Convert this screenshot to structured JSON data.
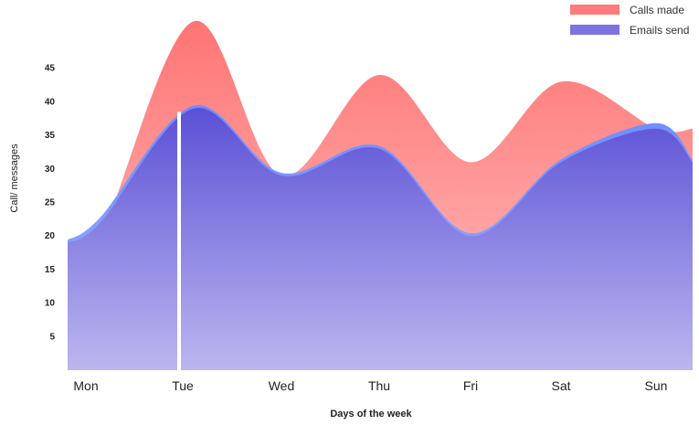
{
  "chart_data": {
    "type": "area",
    "title": "",
    "xlabel": "Days of the week",
    "ylabel": "Call/ messages",
    "categories": [
      "Mon",
      "Tue",
      "Wed",
      "Thu",
      "Fri",
      "Sat",
      "Sun"
    ],
    "y_ticks": [
      5,
      10,
      15,
      20,
      25,
      30,
      35,
      40,
      45
    ],
    "ylim": [
      0,
      50
    ],
    "grid": false,
    "legend_position": "top-right",
    "series": [
      {
        "name": "Calls made",
        "color": "#ff7a7a",
        "values": [
          18,
          52,
          29,
          44,
          31,
          43,
          36
        ],
        "sub_points": [
          {
            "x": "Mon",
            "y": 18
          },
          {
            "x": "Mon",
            "y": 20
          },
          {
            "x": "Tue",
            "y": 52
          },
          {
            "x": "Wed",
            "y": 29
          },
          {
            "x": "Thu",
            "y": 44
          },
          {
            "x": "Fri",
            "y": 31
          },
          {
            "x": "Sat",
            "y": 43
          },
          {
            "x": "Sun",
            "y": 36
          },
          {
            "x": "Sun",
            "y": 36
          }
        ]
      },
      {
        "name": "Emails send",
        "color": "#5b56d9",
        "values": [
          19,
          39,
          29,
          33,
          20,
          31,
          34
        ],
        "sub_points": [
          {
            "x": "Mon",
            "y": 19
          },
          {
            "x": "Mon",
            "y": 22
          },
          {
            "x": "Tue",
            "y": 39
          },
          {
            "x": "Wed",
            "y": 29
          },
          {
            "x": "Thu",
            "y": 33
          },
          {
            "x": "Fri",
            "y": 20
          },
          {
            "x": "Sat",
            "y": 31
          },
          {
            "x": "Sun",
            "y": 36
          },
          {
            "x": "Sun",
            "y": 31
          }
        ]
      }
    ],
    "highlight_category": "Tue"
  }
}
